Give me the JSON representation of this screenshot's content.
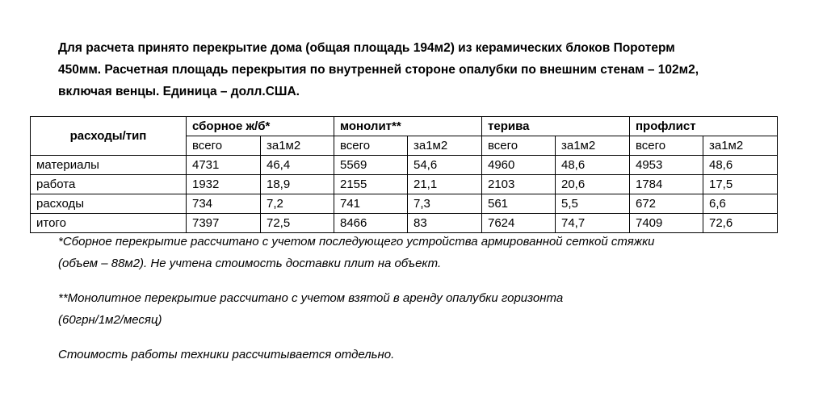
{
  "intro": {
    "lines": [
      "Для расчета принято перекрытие дома (общая площадь 194м2) из керамических блоков Поротерм",
      "450мм. Расчетная площадь перекрытия по внутренней стороне опалубки по внешним стенам – 102м2,",
      "включая венцы.  Единица – долл.США."
    ]
  },
  "table": {
    "header": {
      "row_label": "расходы/тип",
      "groups": [
        "сборное ж/б*",
        "монолит**",
        "терива",
        "профлист"
      ],
      "subheaders": [
        "всего",
        "за1м2",
        "всего",
        "за1м2",
        "всего",
        "за1м2",
        "всего",
        "за1м2"
      ]
    },
    "rows": [
      [
        "материалы",
        "4731",
        "46,4",
        "5569",
        "54,6",
        "4960",
        "48,6",
        "4953",
        "48,6"
      ],
      [
        "работа",
        "1932",
        "18,9",
        "2155",
        "21,1",
        "2103",
        "20,6",
        "1784",
        "17,5"
      ],
      [
        "расходы",
        "734",
        "7,2",
        "741",
        "7,3",
        "561",
        "5,5",
        "672",
        "6,6"
      ],
      [
        "итого",
        "7397",
        "72,5",
        "8466",
        "83",
        "7624",
        "74,7",
        "7409",
        "72,6"
      ]
    ]
  },
  "notes": [
    {
      "lines": [
        "*Сборное перекрытие рассчитано с учетом последующего устройства армированной сеткой стяжки",
        "(объем – 88м2). Не учтена стоимость доставки плит на объект."
      ]
    },
    {
      "lines": [
        "**Монолитное перекрытие рассчитано с учетом взятой в аренду опалубки горизонта",
        "(60грн/1м2/месяц)"
      ]
    },
    {
      "lines": [
        "Стоимость работы техники рассчитывается отдельно."
      ]
    }
  ]
}
